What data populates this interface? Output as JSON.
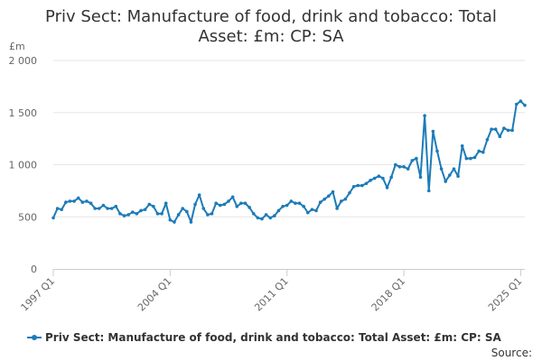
{
  "title_lines": [
    "Priv Sect: Manufacture of food, drink and tobacco: Total",
    "Asset: £m: CP: SA"
  ],
  "source": "Source:",
  "colors": {
    "series": "#1c7bb8",
    "grid": "#e6e6e6",
    "axis": "#cccccc",
    "text": "#333333",
    "tick_text": "#666666"
  },
  "chart_data": {
    "type": "line",
    "title": "Priv Sect: Manufacture of food, drink and tobacco: Total Asset: £m: CP: SA",
    "ylabel": "£m",
    "xlabel": "",
    "ylim": [
      0,
      2000
    ],
    "y_ticks": [
      0,
      500,
      1000,
      1500,
      2000
    ],
    "y_tick_labels": [
      "0",
      "500",
      "1 000",
      "1 500",
      "2 000"
    ],
    "x_tick_labels": [
      "1997 Q1",
      "2004 Q1",
      "2011 Q1",
      "2018 Q1",
      "2025 Q1"
    ],
    "x_tick_indices": [
      0,
      28,
      56,
      84,
      112
    ],
    "grid": true,
    "legend_position": "bottom",
    "x": [
      "1997 Q1",
      "1997 Q2",
      "1997 Q3",
      "1997 Q4",
      "1998 Q1",
      "1998 Q2",
      "1998 Q3",
      "1998 Q4",
      "1999 Q1",
      "1999 Q2",
      "1999 Q3",
      "1999 Q4",
      "2000 Q1",
      "2000 Q2",
      "2000 Q3",
      "2000 Q4",
      "2001 Q1",
      "2001 Q2",
      "2001 Q3",
      "2001 Q4",
      "2002 Q1",
      "2002 Q2",
      "2002 Q3",
      "2002 Q4",
      "2003 Q1",
      "2003 Q2",
      "2003 Q3",
      "2003 Q4",
      "2004 Q1",
      "2004 Q2",
      "2004 Q3",
      "2004 Q4",
      "2005 Q1",
      "2005 Q2",
      "2005 Q3",
      "2005 Q4",
      "2006 Q1",
      "2006 Q2",
      "2006 Q3",
      "2006 Q4",
      "2007 Q1",
      "2007 Q2",
      "2007 Q3",
      "2007 Q4",
      "2008 Q1",
      "2008 Q2",
      "2008 Q3",
      "2008 Q4",
      "2009 Q1",
      "2009 Q2",
      "2009 Q3",
      "2009 Q4",
      "2010 Q1",
      "2010 Q2",
      "2010 Q3",
      "2010 Q4",
      "2011 Q1",
      "2011 Q2",
      "2011 Q3",
      "2011 Q4",
      "2012 Q1",
      "2012 Q2",
      "2012 Q3",
      "2012 Q4",
      "2013 Q1",
      "2013 Q2",
      "2013 Q3",
      "2013 Q4",
      "2014 Q1",
      "2014 Q2",
      "2014 Q3",
      "2014 Q4",
      "2015 Q1",
      "2015 Q2",
      "2015 Q3",
      "2015 Q4",
      "2016 Q1",
      "2016 Q2",
      "2016 Q3",
      "2016 Q4",
      "2017 Q1",
      "2017 Q2",
      "2017 Q3",
      "2017 Q4",
      "2018 Q1",
      "2018 Q2",
      "2018 Q3",
      "2018 Q4",
      "2019 Q1",
      "2019 Q2",
      "2019 Q3",
      "2019 Q4",
      "2020 Q1",
      "2020 Q2",
      "2020 Q3",
      "2020 Q4",
      "2021 Q1",
      "2021 Q2",
      "2021 Q3",
      "2021 Q4",
      "2022 Q1",
      "2022 Q2",
      "2022 Q3",
      "2022 Q4",
      "2023 Q1",
      "2023 Q2",
      "2023 Q3",
      "2023 Q4",
      "2024 Q1",
      "2024 Q2",
      "2024 Q3",
      "2024 Q4",
      "2025 Q1",
      "2025 Q2"
    ],
    "series": [
      {
        "name": "Priv Sect: Manufacture of food, drink and tobacco: Total Asset: £m: CP: SA",
        "values": [
          490,
          580,
          570,
          640,
          650,
          650,
          680,
          640,
          650,
          630,
          580,
          580,
          610,
          580,
          580,
          600,
          530,
          510,
          520,
          545,
          530,
          560,
          570,
          620,
          600,
          530,
          530,
          630,
          470,
          450,
          520,
          580,
          550,
          450,
          620,
          710,
          580,
          520,
          530,
          630,
          610,
          620,
          650,
          690,
          600,
          630,
          630,
          590,
          530,
          490,
          480,
          520,
          490,
          510,
          560,
          600,
          610,
          650,
          630,
          630,
          600,
          540,
          570,
          560,
          640,
          670,
          700,
          740,
          580,
          650,
          670,
          730,
          790,
          800,
          800,
          820,
          850,
          870,
          890,
          870,
          780,
          880,
          1000,
          980,
          980,
          960,
          1040,
          1060,
          880,
          1470,
          750,
          1320,
          1130,
          960,
          840,
          900,
          960,
          890,
          1180,
          1060,
          1060,
          1070,
          1130,
          1120,
          1240,
          1340,
          1340,
          1270,
          1350,
          1330,
          1330,
          1580,
          1610,
          1570
        ]
      }
    ]
  }
}
